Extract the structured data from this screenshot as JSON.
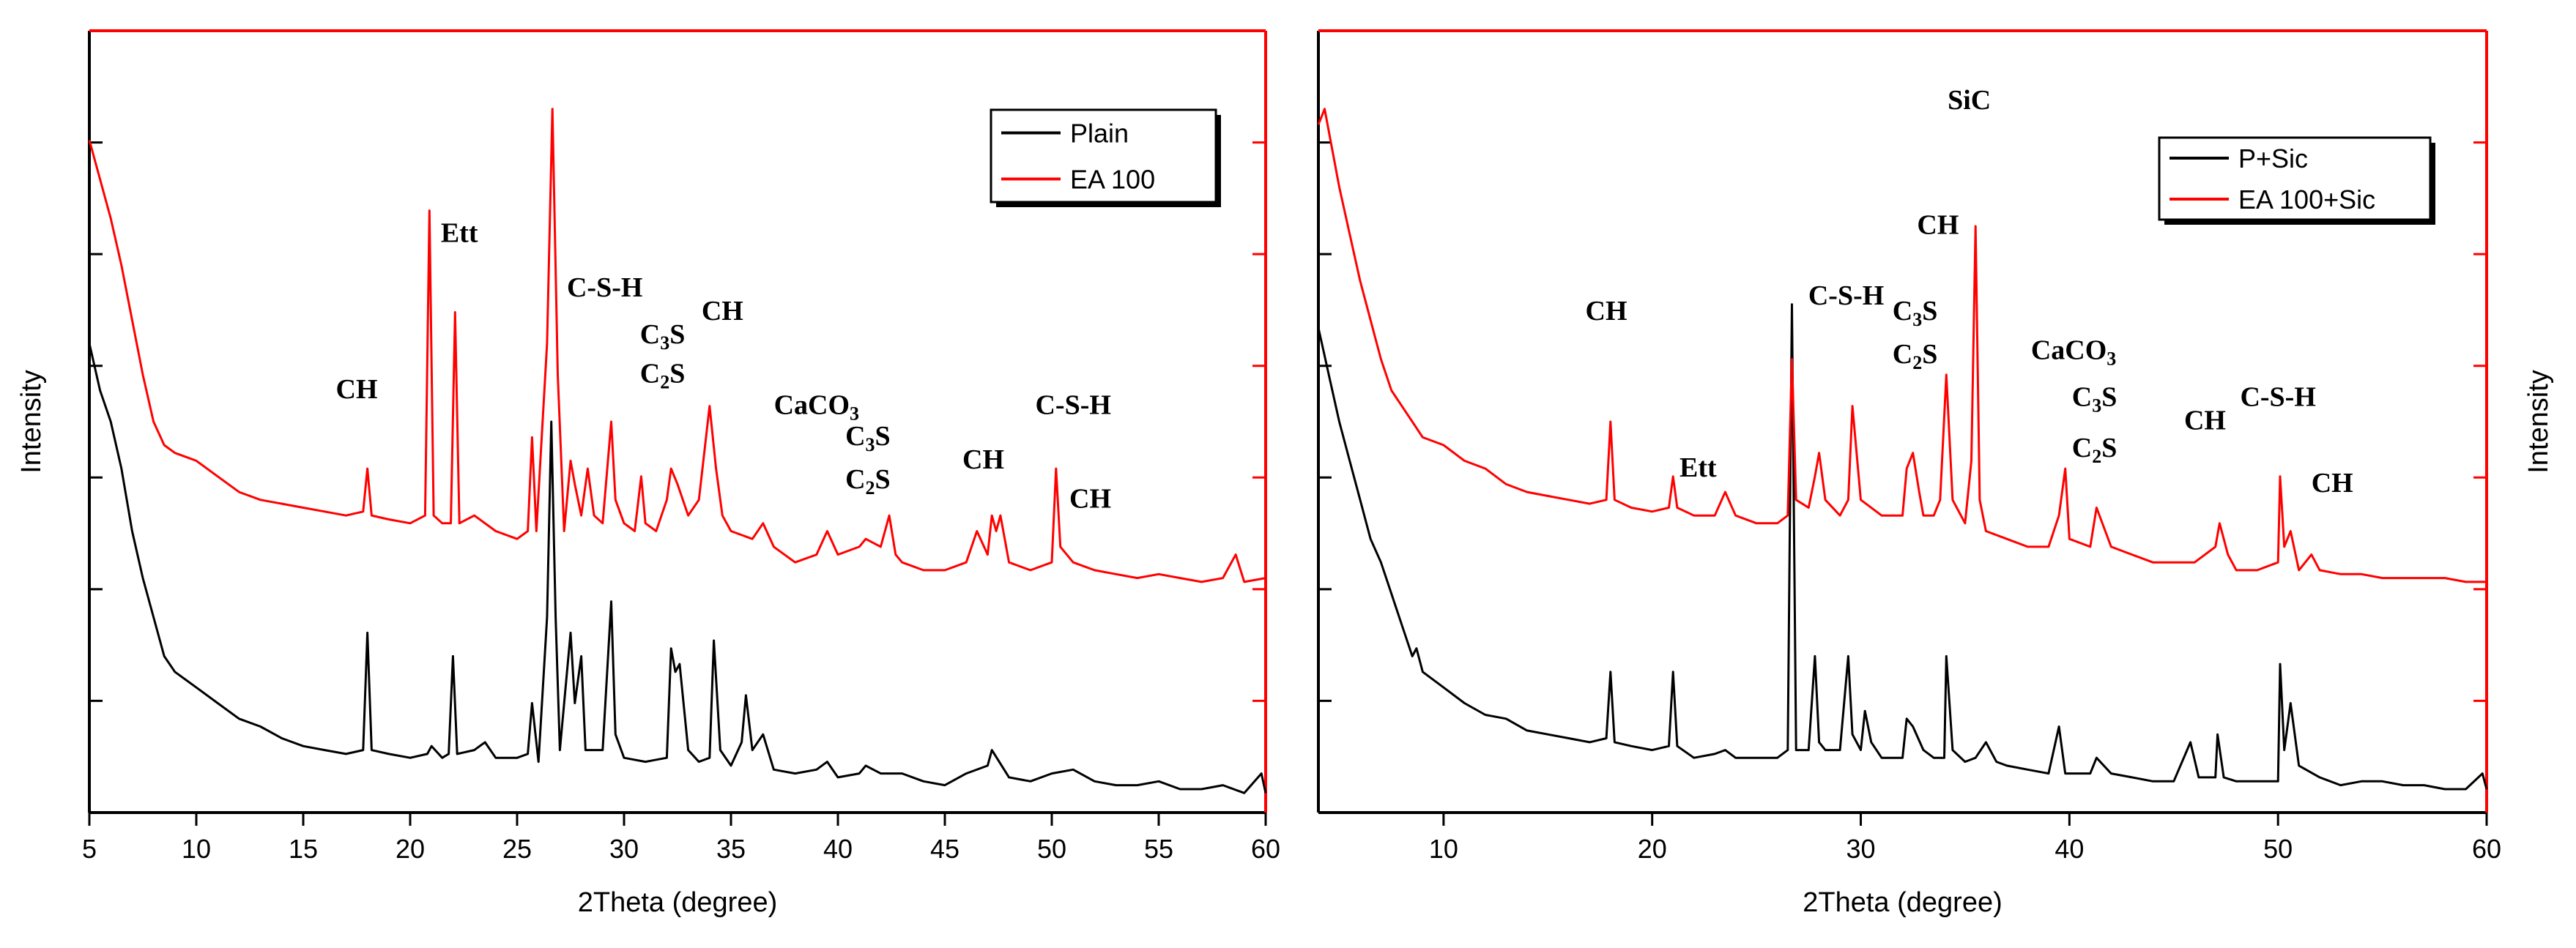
{
  "chart_data": [
    {
      "type": "line",
      "panel": "left",
      "xlabel": "2Theta (degree)",
      "ylabel": "Intensity",
      "xlim": [
        5,
        60
      ],
      "xticks": [
        5,
        10,
        15,
        20,
        25,
        30,
        35,
        40,
        45,
        50,
        55,
        60
      ],
      "ylim": [
        0,
        100
      ],
      "legend_position": "top-right",
      "series": [
        {
          "name": "Plain",
          "color": "#000000",
          "x": [
            5,
            5.5,
            6,
            6.5,
            7,
            7.5,
            8,
            8.5,
            9,
            10,
            11,
            12,
            13,
            14,
            15,
            16,
            17,
            17.8,
            18,
            18.2,
            19,
            20,
            20.8,
            21,
            21.5,
            21.8,
            22,
            22.2,
            23,
            23.5,
            24,
            25,
            25.5,
            25.7,
            26,
            26.4,
            26.6,
            26.8,
            27,
            27.5,
            27.7,
            28,
            28.2,
            29,
            29.4,
            29.6,
            30,
            31,
            32,
            32.2,
            32.4,
            32.6,
            33,
            33.5,
            34,
            34.2,
            34.5,
            35,
            35.5,
            35.7,
            36,
            36.5,
            37,
            38,
            39,
            39.5,
            40,
            41,
            41.3,
            42,
            43,
            44,
            45,
            46,
            47,
            47.2,
            48,
            49,
            50,
            51,
            52,
            53,
            54,
            55,
            56,
            57,
            58,
            59,
            59.8,
            60
          ],
          "y": [
            60,
            54,
            50,
            44,
            36,
            30,
            25,
            20,
            18,
            16,
            14,
            12,
            11,
            9.5,
            8.5,
            8,
            7.5,
            8,
            23,
            8,
            7.5,
            7,
            7.5,
            8.5,
            7,
            7.5,
            20,
            7.5,
            8,
            9,
            7,
            7,
            7.5,
            14,
            6.5,
            25,
            50,
            25,
            8,
            23,
            14,
            20,
            8,
            8,
            27,
            10,
            7,
            6.5,
            7,
            21,
            18,
            19,
            8,
            6.5,
            7,
            22,
            8,
            6,
            9,
            15,
            8,
            10,
            5.5,
            5,
            5.5,
            6.5,
            4.5,
            5,
            6,
            5,
            5,
            4,
            3.5,
            5,
            6,
            8,
            4.5,
            4,
            5,
            5.5,
            4,
            3.5,
            3.5,
            4,
            3,
            3,
            3.5,
            2.5,
            5,
            2.5
          ]
        },
        {
          "name": "EA 100",
          "color": "#ff0000",
          "x": [
            5,
            5.5,
            6,
            6.5,
            7,
            7.5,
            8,
            8.5,
            9,
            10,
            11,
            12,
            13,
            14,
            15,
            16,
            17,
            17.8,
            18,
            18.2,
            19,
            20,
            20.7,
            20.9,
            21.1,
            21.5,
            21.9,
            22.1,
            22.3,
            23,
            24,
            25,
            25.5,
            25.7,
            25.9,
            26.4,
            26.65,
            26.9,
            27.2,
            27.5,
            27.7,
            28,
            28.3,
            28.6,
            29,
            29.4,
            29.6,
            30,
            30.5,
            30.8,
            31,
            31.5,
            32,
            32.2,
            32.5,
            33,
            33.5,
            34,
            34.3,
            34.6,
            35,
            36,
            36.5,
            37,
            38,
            39,
            39.5,
            40,
            41,
            41.3,
            42,
            42.4,
            42.7,
            43,
            44,
            45,
            46,
            46.5,
            47,
            47.2,
            47.4,
            47.6,
            48,
            49,
            50,
            50.2,
            50.4,
            51,
            52,
            53,
            54,
            55,
            56,
            57,
            58,
            58.6,
            59,
            60
          ],
          "y": [
            86,
            81,
            76,
            70,
            63,
            56,
            50,
            47,
            46,
            45,
            43,
            41,
            40,
            39.5,
            39,
            38.5,
            38,
            38.5,
            44,
            38,
            37.5,
            37,
            38,
            77,
            38,
            37,
            37,
            64,
            37,
            38,
            36,
            35,
            36,
            48,
            36,
            60,
            90,
            56,
            36,
            45,
            42,
            38,
            44,
            38,
            37,
            50,
            40,
            37,
            36,
            43,
            37,
            36,
            40,
            44,
            42,
            38,
            40,
            52,
            44,
            38,
            36,
            35,
            37,
            34,
            32,
            33,
            36,
            33,
            34,
            35,
            34,
            38,
            33,
            32,
            31,
            31,
            32,
            36,
            33,
            38,
            36,
            38,
            32,
            31,
            32,
            44,
            34,
            32,
            31,
            30.5,
            30,
            30.5,
            30,
            29.5,
            30,
            33,
            29.5,
            30
          ]
        }
      ],
      "annotations": [
        {
          "text": "CH",
          "x": 17.5,
          "y": 53
        },
        {
          "text": "Ett",
          "x": 22.3,
          "y": 73
        },
        {
          "text": "C-S-H",
          "x": 29.1,
          "y": 66
        },
        {
          "text": "C3S",
          "x": 31.8,
          "y": 60
        },
        {
          "text": "C2S",
          "x": 31.8,
          "y": 55
        },
        {
          "text": "CH",
          "x": 34.6,
          "y": 63
        },
        {
          "text": "CaCO3",
          "x": 39,
          "y": 51
        },
        {
          "text": "C3S",
          "x": 41.4,
          "y": 47
        },
        {
          "text": "C2S",
          "x": 41.4,
          "y": 41.5
        },
        {
          "text": "CH",
          "x": 46.8,
          "y": 44
        },
        {
          "text": "C-S-H",
          "x": 51,
          "y": 51
        },
        {
          "text": "CH",
          "x": 51.8,
          "y": 39
        }
      ]
    },
    {
      "type": "line",
      "panel": "right",
      "xlabel": "2Theta (degree)",
      "ylabel": "Intensity",
      "xlim": [
        4,
        60
      ],
      "xticks": [
        10,
        20,
        30,
        40,
        50,
        60
      ],
      "ylim": [
        0,
        100
      ],
      "legend_position": "top-right",
      "series": [
        {
          "name": "P+Sic",
          "color": "#000000",
          "x": [
            4,
            4.5,
            5,
            5.5,
            6,
            6.5,
            7,
            7.5,
            8,
            8.5,
            8.7,
            9,
            10,
            11,
            12,
            13,
            14,
            15,
            16,
            17,
            17.8,
            18,
            18.2,
            19,
            20,
            20.8,
            21,
            21.2,
            22,
            23,
            23.5,
            24,
            25,
            26,
            26.5,
            26.7,
            26.9,
            27.5,
            27.8,
            28,
            28.3,
            29,
            29.4,
            29.6,
            30,
            30.2,
            30.5,
            31,
            32,
            32.2,
            32.5,
            33,
            33.5,
            34,
            34.1,
            34.4,
            35,
            35.5,
            36,
            36.5,
            37,
            38,
            39,
            39.5,
            39.8,
            40,
            41,
            41.3,
            42,
            43,
            44,
            45,
            45.8,
            46.2,
            47,
            47.1,
            47.4,
            48,
            49,
            50,
            50.1,
            50.3,
            50.6,
            51,
            52,
            53,
            54,
            55,
            56,
            57,
            58,
            59,
            59.8,
            60
          ],
          "y": [
            62,
            56,
            50,
            45,
            40,
            35,
            32,
            28,
            24,
            20,
            21,
            18,
            16,
            14,
            12.5,
            12,
            10.5,
            10,
            9.5,
            9,
            9.5,
            18,
            9,
            8.5,
            8,
            8.5,
            18,
            8.5,
            7,
            7.5,
            8,
            7,
            7,
            7,
            8,
            65,
            8,
            8,
            20,
            9,
            8,
            8,
            20,
            10,
            8,
            13,
            9,
            7,
            7,
            12,
            11,
            8,
            7,
            7,
            20,
            8,
            6.5,
            7,
            9,
            6.5,
            6,
            5.5,
            5,
            11,
            5,
            5,
            5,
            7,
            5,
            4.5,
            4,
            4,
            9,
            4.5,
            4.5,
            10,
            4.5,
            4,
            4,
            4,
            19,
            8,
            14,
            6,
            4.5,
            3.5,
            4,
            4,
            3.5,
            3.5,
            3,
            3,
            5,
            3
          ]
        },
        {
          "name": "EA 100+Sic",
          "color": "#ff0000",
          "x": [
            4,
            4.3,
            5,
            5.5,
            6,
            6.5,
            7,
            7.5,
            8,
            8.5,
            9,
            10,
            11,
            12,
            13,
            14,
            15,
            16,
            17,
            17.8,
            18,
            18.2,
            19,
            20,
            20.8,
            21,
            21.2,
            22,
            23,
            23.5,
            24,
            25,
            26,
            26.5,
            26.7,
            26.9,
            27.5,
            27.8,
            28,
            28.3,
            29,
            29.4,
            29.6,
            30,
            31,
            32,
            32.2,
            32.5,
            32.8,
            33,
            33.5,
            33.8,
            34.1,
            34.4,
            35,
            35.3,
            35.5,
            35.7,
            36,
            37,
            38,
            39,
            39.5,
            39.8,
            40,
            41,
            41.3,
            42,
            43,
            44,
            45,
            46,
            47,
            47.2,
            47.6,
            48,
            49,
            50,
            50.1,
            50.3,
            50.6,
            51,
            51.6,
            52,
            53,
            54,
            55,
            56,
            57,
            58,
            59,
            60
          ],
          "y": [
            88,
            90,
            80,
            74,
            68,
            63,
            58,
            54,
            52,
            50,
            48,
            47,
            45,
            44,
            42,
            41,
            40.5,
            40,
            39.5,
            40,
            50,
            40,
            39,
            38.5,
            39,
            43,
            39,
            38,
            38,
            41,
            38,
            37,
            37,
            38,
            58,
            40,
            39,
            43,
            46,
            40,
            38,
            40,
            52,
            40,
            38,
            38,
            44,
            46,
            41,
            38,
            38,
            40,
            56,
            40,
            37,
            45,
            75,
            40,
            36,
            35,
            34,
            34,
            38,
            44,
            35,
            34,
            39,
            34,
            33,
            32,
            32,
            32,
            34,
            37,
            33,
            31,
            31,
            32,
            43,
            34,
            36,
            31,
            33,
            31,
            30.5,
            30.5,
            30,
            30,
            30,
            30,
            29.5,
            29.5
          ]
        }
      ],
      "annotations": [
        {
          "text": "CH",
          "x": 17.8,
          "y": 63
        },
        {
          "text": "Ett",
          "x": 22.2,
          "y": 43
        },
        {
          "text": "C-S-H",
          "x": 29.3,
          "y": 65
        },
        {
          "text": "C3S",
          "x": 32.6,
          "y": 63
        },
        {
          "text": "C2S",
          "x": 32.6,
          "y": 57.5
        },
        {
          "text": "CH",
          "x": 33.7,
          "y": 74
        },
        {
          "text": "SiC",
          "x": 35.2,
          "y": 90
        },
        {
          "text": "CaCO3",
          "x": 40.2,
          "y": 58
        },
        {
          "text": "C3S",
          "x": 41.2,
          "y": 52
        },
        {
          "text": "C2S",
          "x": 41.2,
          "y": 45.5
        },
        {
          "text": "CH",
          "x": 46.5,
          "y": 49
        },
        {
          "text": "C-S-H",
          "x": 50,
          "y": 52
        },
        {
          "text": "CH",
          "x": 52.6,
          "y": 41
        }
      ]
    }
  ]
}
